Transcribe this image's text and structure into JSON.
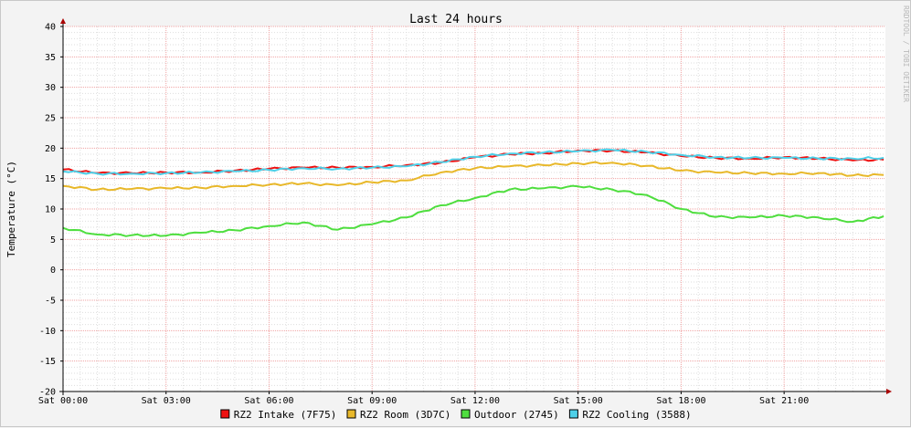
{
  "chart_data": {
    "type": "line",
    "title": "Last 24 hours",
    "ylabel": "Temperature (°C)",
    "xlabel": "",
    "ylim": [
      -20,
      40
    ],
    "y_ticks": [
      40,
      35,
      30,
      25,
      20,
      15,
      10,
      5,
      0,
      -5,
      -10,
      -15,
      -20
    ],
    "y_tick_labels": [
      "40",
      "35",
      "30",
      "25",
      "20",
      "15",
      "10",
      "5",
      "0",
      "-5",
      "-10",
      "-15",
      "-20"
    ],
    "xlim_hours": [
      0,
      23.95
    ],
    "x_ticks_hours": [
      0,
      3,
      6,
      9,
      12,
      15,
      18,
      21
    ],
    "x_tick_labels": [
      "Sat 00:00",
      "Sat 03:00",
      "Sat 06:00",
      "Sat 09:00",
      "Sat 12:00",
      "Sat 15:00",
      "Sat 18:00",
      "Sat 21:00"
    ],
    "grid": true,
    "legend_position": "bottom",
    "watermark": "RRDTOOL / TOBI OETIKER",
    "x_hours": [
      0,
      1,
      2,
      3,
      4,
      5,
      6,
      7,
      8,
      9,
      10,
      11,
      12,
      13,
      14,
      15,
      16,
      17,
      18,
      19,
      20,
      21,
      22,
      23,
      23.9
    ],
    "series": [
      {
        "name": "RZ2 Intake (7F75)",
        "color": "#ee1111",
        "values": [
          16.5,
          15.9,
          15.9,
          16.0,
          16.0,
          16.3,
          16.6,
          16.8,
          16.8,
          16.9,
          17.2,
          17.6,
          18.5,
          19.0,
          19.2,
          19.6,
          19.6,
          19.3,
          18.7,
          18.4,
          18.3,
          18.5,
          18.3,
          18.0,
          18.1
        ]
      },
      {
        "name": "RZ2 Room (3D7C)",
        "color": "#e8b82a",
        "values": [
          13.8,
          13.2,
          13.3,
          13.4,
          13.5,
          13.8,
          14.0,
          14.2,
          13.9,
          14.4,
          14.7,
          16.0,
          16.7,
          17.0,
          17.2,
          17.5,
          17.6,
          17.1,
          16.3,
          16.0,
          15.9,
          15.8,
          15.9,
          15.5,
          15.6
        ]
      },
      {
        "name": "Outdoor (2745)",
        "color": "#4ede3e",
        "values": [
          6.9,
          5.8,
          5.7,
          5.6,
          6.1,
          6.5,
          7.2,
          7.8,
          6.6,
          7.5,
          8.6,
          10.6,
          11.8,
          13.2,
          13.4,
          13.7,
          13.2,
          12.3,
          10.0,
          8.7,
          8.6,
          8.9,
          8.6,
          7.9,
          8.8
        ]
      },
      {
        "name": "RZ2 Cooling (3588)",
        "color": "#4ed0e8",
        "values": [
          16.2,
          15.8,
          15.8,
          15.9,
          16.0,
          16.2,
          16.4,
          16.7,
          16.6,
          16.8,
          17.0,
          17.7,
          18.6,
          19.1,
          19.3,
          19.5,
          19.7,
          19.4,
          18.9,
          18.5,
          18.4,
          18.4,
          18.3,
          18.3,
          18.4
        ]
      }
    ]
  }
}
